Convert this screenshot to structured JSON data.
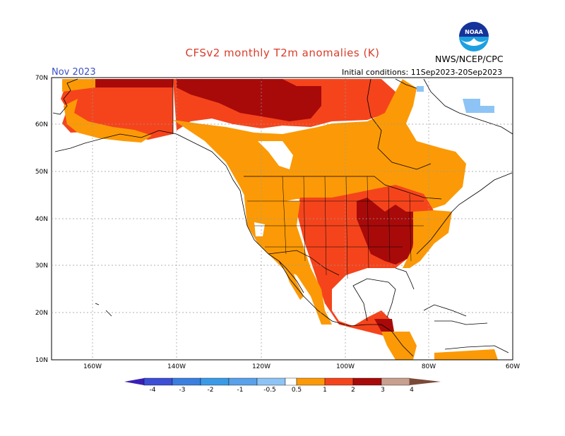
{
  "header": {
    "title": "CFSv2 monthly T2m anomalies (K)",
    "month": "Nov 2023",
    "initial_conditions": "Initial conditions: 11Sep2023-20Sep2023",
    "agency": "NWS/NCEP/CPC",
    "logo_text": "NOAA"
  },
  "axes": {
    "lat_labels": [
      "70N",
      "60N",
      "50N",
      "40N",
      "30N",
      "20N",
      "10N"
    ],
    "lon_labels": [
      "160W",
      "140W",
      "120W",
      "100W",
      "80W",
      "60W"
    ]
  },
  "colorbar": {
    "labels": [
      "-4",
      "-3",
      "-2",
      "-1",
      "-0.5",
      "0.5",
      "1",
      "2",
      "3",
      "4"
    ],
    "colors": [
      "#3a1fb5",
      "#3d4fd6",
      "#3a7fe0",
      "#5aa0ea",
      "#8dc4f5",
      "#ffffff",
      "#fb9a06",
      "#f5441c",
      "#a80a0a",
      "#c8a090",
      "#7a4a38"
    ]
  },
  "anomaly_colors": {
    "cold": "#8dc4f5",
    "orange": "#fb9a06",
    "red": "#f5441c",
    "dark_red": "#a80a0a"
  }
}
